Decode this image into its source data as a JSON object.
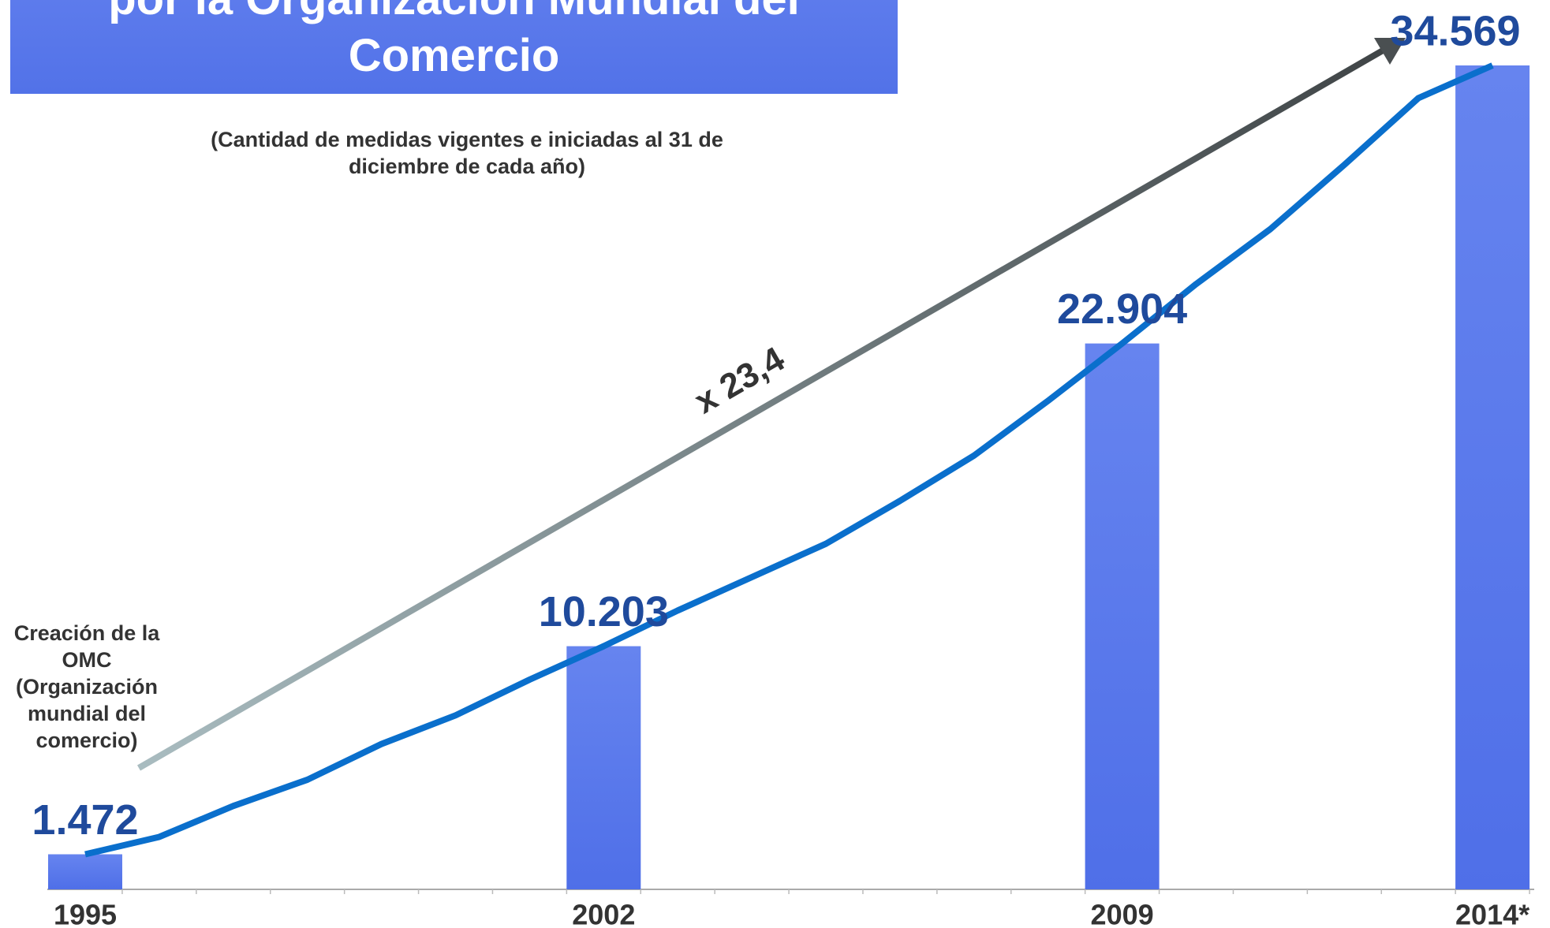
{
  "chart_data": {
    "type": "bar-line",
    "title": "por la Organización Mundial del Comercio",
    "subtitle": "(Cantidad de medidas vigentes e iniciadas al 31 de diciembre de cada año)",
    "annotations": [
      "Creación de la OMC (Organización mundial del comercio)",
      "x 23,4"
    ],
    "categories": [
      "1995",
      null,
      null,
      null,
      null,
      null,
      null,
      "2002",
      null,
      null,
      null,
      null,
      null,
      null,
      "2009",
      null,
      null,
      null,
      null,
      "2014*"
    ],
    "series": [
      {
        "name": "bars",
        "type": "bar",
        "color": "#5b7aec",
        "values": [
          1472,
          null,
          null,
          null,
          null,
          null,
          null,
          10203,
          null,
          null,
          null,
          null,
          null,
          null,
          22904,
          null,
          null,
          null,
          null,
          34569
        ],
        "value_labels": [
          "1.472",
          null,
          null,
          null,
          null,
          null,
          null,
          "10.203",
          null,
          null,
          null,
          null,
          null,
          null,
          "22.904",
          null,
          null,
          null,
          null,
          "34.569"
        ]
      },
      {
        "name": "line",
        "type": "line",
        "color": "#0a6fcc",
        "values": [
          1472,
          2200,
          3500,
          4600,
          6100,
          7300,
          8800,
          10203,
          11700,
          13100,
          14500,
          16300,
          18200,
          20500,
          22904,
          25400,
          27700,
          30400,
          33200,
          34569
        ]
      }
    ]
  }
}
